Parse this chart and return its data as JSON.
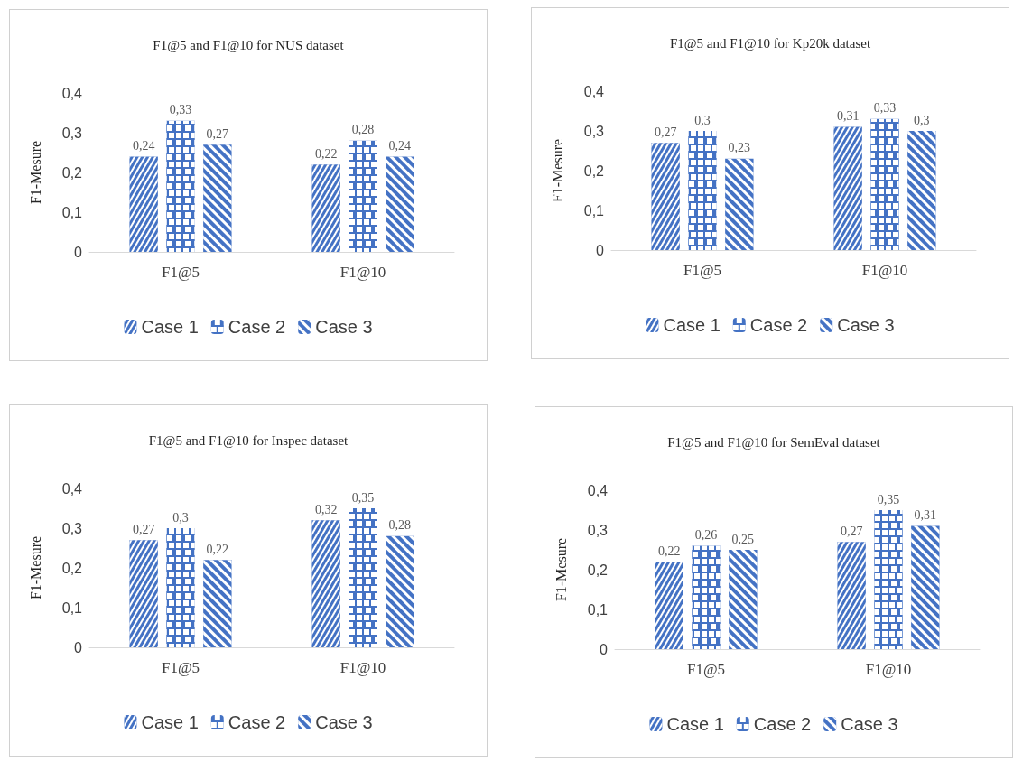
{
  "chart_data": [
    {
      "type": "bar",
      "title": "F1@5 and F1@10 for NUS dataset",
      "ylabel": "F1-Mesure",
      "categories": [
        "F1@5",
        "F1@10"
      ],
      "series": [
        {
          "name": "Case 1",
          "color": "#4472c4",
          "values": [
            0.24,
            0.22
          ],
          "value_labels": [
            "0,24",
            "0,22"
          ]
        },
        {
          "name": "Case 2",
          "color": "#4472c4",
          "values": [
            0.33,
            0.28
          ],
          "value_labels": [
            "0,33",
            "0,28"
          ]
        },
        {
          "name": "Case 3",
          "color": "#4472c4",
          "values": [
            0.27,
            0.24
          ],
          "value_labels": [
            "0,27",
            "0,24"
          ]
        }
      ],
      "ylim": [
        0,
        0.4
      ],
      "yticks": [
        {
          "value": 0,
          "label": "0"
        },
        {
          "value": 0.1,
          "label": "0,1"
        },
        {
          "value": 0.2,
          "label": "0,2"
        },
        {
          "value": 0.3,
          "label": "0,3"
        },
        {
          "value": 0.4,
          "label": "0,4"
        }
      ],
      "legend": "bottom"
    },
    {
      "type": "bar",
      "title": "F1@5 and F1@10 for Kp20k dataset",
      "ylabel": "F1-Mesure",
      "categories": [
        "F1@5",
        "F1@10"
      ],
      "series": [
        {
          "name": "Case 1",
          "color": "#4472c4",
          "values": [
            0.27,
            0.31
          ],
          "value_labels": [
            "0,27",
            "0,31"
          ]
        },
        {
          "name": "Case 2",
          "color": "#4472c4",
          "values": [
            0.3,
            0.33
          ],
          "value_labels": [
            "0,3",
            "0,33"
          ]
        },
        {
          "name": "Case 3",
          "color": "#4472c4",
          "values": [
            0.23,
            0.3
          ],
          "value_labels": [
            "0,23",
            "0,3"
          ]
        }
      ],
      "ylim": [
        0,
        0.4
      ],
      "yticks": [
        {
          "value": 0,
          "label": "0"
        },
        {
          "value": 0.1,
          "label": "0,1"
        },
        {
          "value": 0.2,
          "label": "0,2"
        },
        {
          "value": 0.3,
          "label": "0,3"
        },
        {
          "value": 0.4,
          "label": "0,4"
        }
      ],
      "legend": "bottom"
    },
    {
      "type": "bar",
      "title": "F1@5 and F1@10 for Inspec dataset",
      "ylabel": "F1-Mesure",
      "categories": [
        "F1@5",
        "F1@10"
      ],
      "series": [
        {
          "name": "Case 1",
          "color": "#4472c4",
          "values": [
            0.27,
            0.32
          ],
          "value_labels": [
            "0,27",
            "0,32"
          ]
        },
        {
          "name": "Case 2",
          "color": "#4472c4",
          "values": [
            0.3,
            0.35
          ],
          "value_labels": [
            "0,3",
            "0,35"
          ]
        },
        {
          "name": "Case 3",
          "color": "#4472c4",
          "values": [
            0.22,
            0.28
          ],
          "value_labels": [
            "0,22",
            "0,28"
          ]
        }
      ],
      "ylim": [
        0,
        0.4
      ],
      "yticks": [
        {
          "value": 0,
          "label": "0"
        },
        {
          "value": 0.1,
          "label": "0,1"
        },
        {
          "value": 0.2,
          "label": "0,2"
        },
        {
          "value": 0.3,
          "label": "0,3"
        },
        {
          "value": 0.4,
          "label": "0,4"
        }
      ],
      "legend": "bottom"
    },
    {
      "type": "bar",
      "title": "F1@5 and F1@10 for SemEval dataset",
      "ylabel": "F1-Mesure",
      "categories": [
        "F1@5",
        "F1@10"
      ],
      "series": [
        {
          "name": "Case 1",
          "color": "#4472c4",
          "values": [
            0.22,
            0.27
          ],
          "value_labels": [
            "0,22",
            "0,27"
          ]
        },
        {
          "name": "Case 2",
          "color": "#4472c4",
          "values": [
            0.26,
            0.35
          ],
          "value_labels": [
            "0,26",
            "0,35"
          ]
        },
        {
          "name": "Case 3",
          "color": "#4472c4",
          "values": [
            0.25,
            0.31
          ],
          "value_labels": [
            "0,25",
            "0,31"
          ]
        }
      ],
      "ylim": [
        0,
        0.4
      ],
      "yticks": [
        {
          "value": 0,
          "label": "0"
        },
        {
          "value": 0.1,
          "label": "0,1"
        },
        {
          "value": 0.2,
          "label": "0,2"
        },
        {
          "value": 0.3,
          "label": "0,3"
        },
        {
          "value": 0.4,
          "label": "0,4"
        }
      ],
      "legend": "bottom"
    }
  ]
}
